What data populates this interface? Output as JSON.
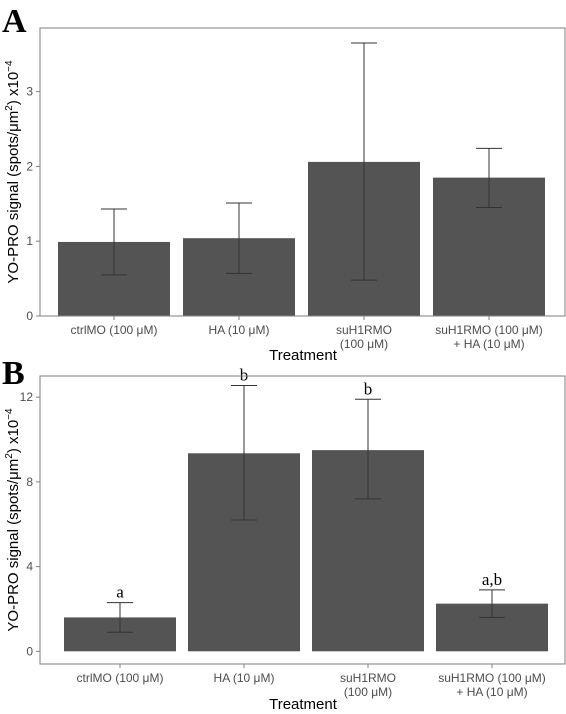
{
  "chart_data": [
    {
      "type": "bar",
      "panel_label": "A",
      "categories": [
        [
          "ctrlMO (100 μM)"
        ],
        [
          "HA (10 μM)"
        ],
        [
          "suH1RMO",
          "(100 μM)"
        ],
        [
          "suH1RMO (100 μM)",
          "+ HA (10 μM)"
        ]
      ],
      "values": [
        0.99,
        1.04,
        2.06,
        1.85
      ],
      "error_low": [
        0.55,
        0.57,
        0.48,
        1.45
      ],
      "error_high": [
        1.43,
        1.51,
        3.65,
        2.24
      ],
      "significance": [],
      "xlabel": "Treatment",
      "ylabel": "YO-PRO signal (spots/μm",
      "ylabel_sup": "2",
      "ylabel_suffix": ") x10",
      "ylabel_exp": "−4",
      "ylim": [
        0,
        3.85
      ],
      "yticks": [
        0,
        1,
        2,
        3
      ],
      "grid": false,
      "bar_color": "#545454"
    },
    {
      "type": "bar",
      "panel_label": "B",
      "categories": [
        [
          "ctrlMO (100 μM)"
        ],
        [
          "HA (10 μM)"
        ],
        [
          "suH1RMO",
          "(100 μM)"
        ],
        [
          "suH1RMO (100 μM)",
          "+ HA (10 μM)"
        ]
      ],
      "values": [
        1.6,
        9.35,
        9.5,
        2.25
      ],
      "error_low": [
        0.9,
        6.2,
        7.2,
        1.6
      ],
      "error_high": [
        2.3,
        12.55,
        11.9,
        2.9
      ],
      "significance": [
        "a",
        "b",
        "b",
        "a,b"
      ],
      "xlabel": "Treatment",
      "ylabel": "YO-PRO signal (spots/μm",
      "ylabel_sup": "2",
      "ylabel_suffix": ") x10",
      "ylabel_exp": "−4",
      "ylim": [
        -0.6,
        13
      ],
      "yticks": [
        0,
        4,
        8,
        12
      ],
      "grid": false,
      "bar_color": "#545454"
    }
  ]
}
